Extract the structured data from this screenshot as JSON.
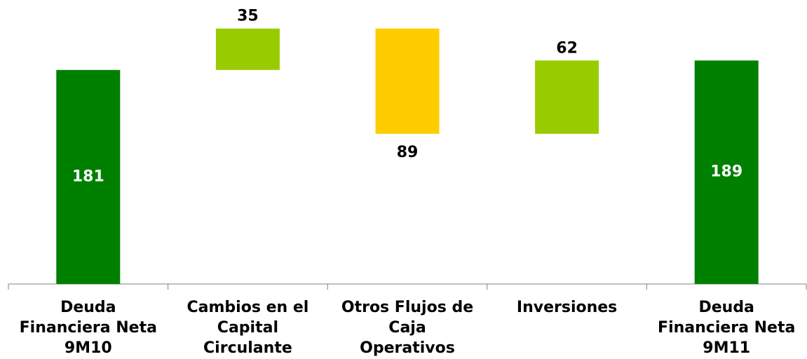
{
  "chart_data": {
    "type": "waterfall",
    "categories": [
      "Deuda\nFinanciera Neta\n9M10",
      "Cambios en el\nCapital\nCirculante",
      "Otros Flujos de\nCaja\nOperativos",
      "Inversiones",
      "Deuda\nFinanciera Neta\n9M11"
    ],
    "values": [
      181,
      35,
      89,
      62,
      189
    ],
    "measure": [
      "total",
      "increase",
      "decrease",
      "increase",
      "total"
    ],
    "colors": [
      "#008000",
      "#99cc00",
      "#ffcc00",
      "#99cc00",
      "#008000"
    ],
    "ylim": [
      0,
      220
    ]
  }
}
